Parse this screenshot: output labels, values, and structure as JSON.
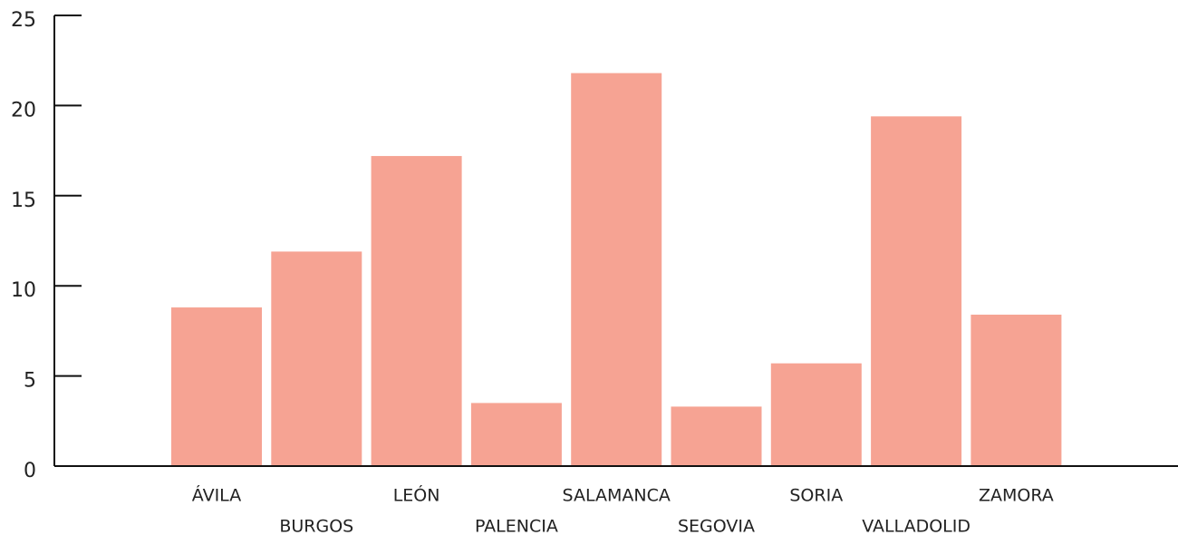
{
  "chart_data": {
    "type": "bar",
    "categories": [
      "ÁVILA",
      "BURGOS",
      "LEÓN",
      "PALENCIA",
      "SALAMANCA",
      "SEGOVIA",
      "SORIA",
      "VALLADOLID",
      "ZAMORA"
    ],
    "values": [
      8.8,
      11.9,
      17.2,
      3.5,
      21.8,
      3.3,
      5.7,
      19.4,
      8.4
    ],
    "color": "#f6a393",
    "ylim": [
      0,
      25
    ],
    "yticks": [
      0,
      5,
      10,
      15,
      20,
      25
    ],
    "grid": false
  }
}
